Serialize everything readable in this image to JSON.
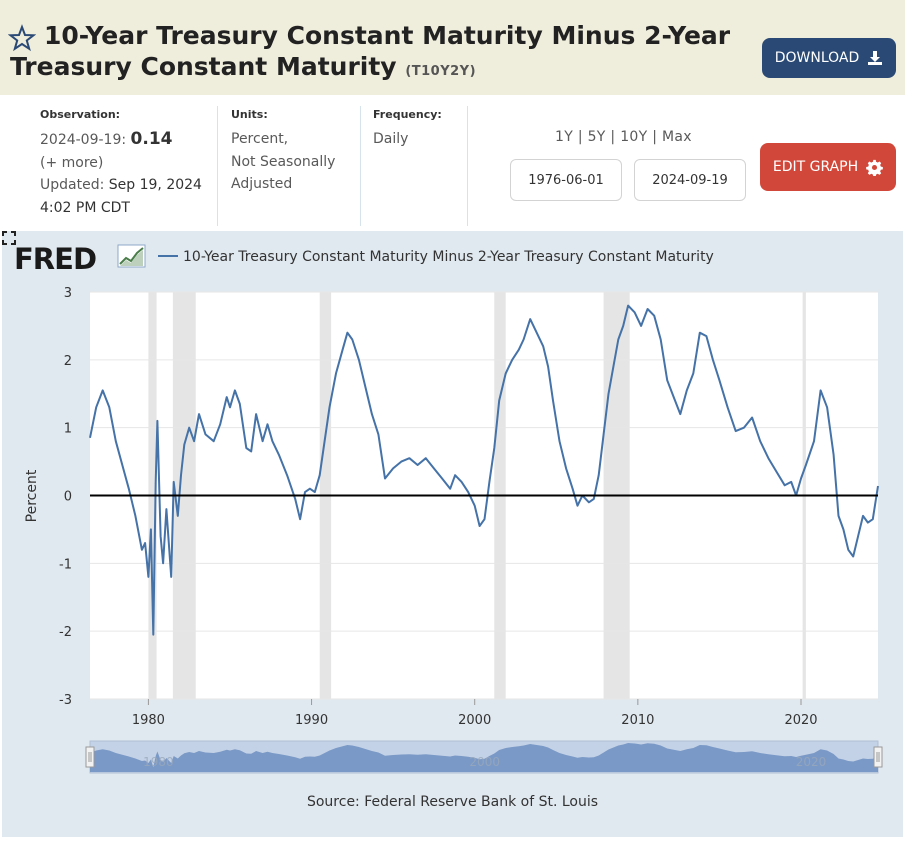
{
  "header": {
    "title": "10-Year Treasury Constant Maturity Minus 2-Year Treasury Constant Maturity",
    "series_id": "(T10Y2Y)",
    "download_label": "DOWNLOAD"
  },
  "meta": {
    "observation_label": "Observation:",
    "observation_date": "2024-09-19:",
    "observation_value": "0.14",
    "more": "(+ more)",
    "updated_label": "Updated:",
    "updated_value": "Sep 19, 2024",
    "updated_time": "4:02 PM CDT",
    "units_label": "Units:",
    "units_lines": [
      "Percent,",
      "Not Seasonally",
      "Adjusted"
    ],
    "frequency_label": "Frequency:",
    "frequency_value": "Daily"
  },
  "controls": {
    "range_links": [
      "1Y",
      "5Y",
      "10Y",
      "Max"
    ],
    "start_date": "1976-06-01",
    "end_date": "2024-09-19",
    "edit_label": "EDIT GRAPH"
  },
  "colors": {
    "header_bg": "#efeddc",
    "download_bg": "#2a4a75",
    "edit_bg": "#d1483a",
    "line": "#4572a7",
    "recession": "#e5e5e5",
    "panel_bg": "#e1e9f0"
  },
  "chart": {
    "logo": "FRED",
    "legend_label": "10-Year Treasury Constant Maturity Minus 2-Year Treasury Constant Maturity",
    "source": "Source: Federal Reserve Bank of St. Louis"
  },
  "chart_data": {
    "type": "line",
    "title": "10-Year Treasury Constant Maturity Minus 2-Year Treasury Constant Maturity",
    "xlabel": "",
    "ylabel": "Percent",
    "xlim": [
      1976.42,
      2024.72
    ],
    "ylim": [
      -3,
      3
    ],
    "xticks": [
      1980,
      1990,
      2000,
      2010,
      2020
    ],
    "yticks": [
      3,
      2,
      1,
      0,
      -1,
      -2,
      -3
    ],
    "grid": true,
    "zero_line": true,
    "recessions": [
      [
        1980.0,
        1980.5
      ],
      [
        1981.5,
        1982.9
      ],
      [
        1990.5,
        1991.2
      ],
      [
        2001.2,
        2001.9
      ],
      [
        2007.9,
        2009.5
      ],
      [
        2020.1,
        2020.3
      ]
    ],
    "navigator_labels": [
      "1980",
      "2000",
      "2020"
    ],
    "series": [
      {
        "name": "T10Y2Y",
        "x": [
          1976.42,
          1976.8,
          1977.2,
          1977.6,
          1978.0,
          1978.4,
          1978.8,
          1979.2,
          1979.6,
          1979.8,
          1980.0,
          1980.15,
          1980.3,
          1980.45,
          1980.55,
          1980.75,
          1980.9,
          1981.1,
          1981.4,
          1981.55,
          1981.8,
          1982.0,
          1982.2,
          1982.5,
          1982.8,
          1983.1,
          1983.5,
          1984.0,
          1984.4,
          1984.8,
          1985.0,
          1985.3,
          1985.6,
          1986.0,
          1986.3,
          1986.6,
          1987.0,
          1987.3,
          1987.6,
          1988.0,
          1988.5,
          1989.0,
          1989.3,
          1989.6,
          1989.9,
          1990.2,
          1990.5,
          1990.8,
          1991.1,
          1991.5,
          1991.9,
          1992.2,
          1992.5,
          1992.9,
          1993.3,
          1993.7,
          1994.1,
          1994.5,
          1995.0,
          1995.5,
          1996.0,
          1996.5,
          1997.0,
          1997.5,
          1998.0,
          1998.5,
          1998.8,
          1999.2,
          1999.6,
          2000.0,
          2000.3,
          2000.6,
          2000.9,
          2001.2,
          2001.5,
          2001.9,
          2002.3,
          2002.7,
          2003.0,
          2003.4,
          2003.8,
          2004.2,
          2004.5,
          2004.8,
          2005.2,
          2005.6,
          2006.0,
          2006.3,
          2006.6,
          2007.0,
          2007.3,
          2007.6,
          2007.9,
          2008.2,
          2008.5,
          2008.8,
          2009.1,
          2009.4,
          2009.8,
          2010.2,
          2010.6,
          2011.0,
          2011.4,
          2011.8,
          2012.2,
          2012.6,
          2013.0,
          2013.4,
          2013.8,
          2014.2,
          2014.6,
          2015.0,
          2015.5,
          2016.0,
          2016.5,
          2017.0,
          2017.5,
          2018.0,
          2018.5,
          2019.0,
          2019.4,
          2019.7,
          2020.0,
          2020.3,
          2020.8,
          2021.2,
          2021.6,
          2022.0,
          2022.3,
          2022.6,
          2022.9,
          2023.2,
          2023.5,
          2023.8,
          2024.1,
          2024.4,
          2024.72
        ],
        "values": [
          0.85,
          1.3,
          1.55,
          1.3,
          0.8,
          0.45,
          0.1,
          -0.3,
          -0.8,
          -0.7,
          -1.2,
          -0.5,
          -2.05,
          0.2,
          1.1,
          -0.6,
          -1.0,
          -0.2,
          -1.2,
          0.2,
          -0.3,
          0.3,
          0.75,
          1.0,
          0.8,
          1.2,
          0.9,
          0.8,
          1.05,
          1.45,
          1.3,
          1.55,
          1.35,
          0.7,
          0.65,
          1.2,
          0.8,
          1.05,
          0.8,
          0.6,
          0.3,
          -0.05,
          -0.35,
          0.05,
          0.1,
          0.05,
          0.3,
          0.8,
          1.3,
          1.8,
          2.15,
          2.4,
          2.3,
          2.0,
          1.6,
          1.2,
          0.9,
          0.25,
          0.4,
          0.5,
          0.55,
          0.45,
          0.55,
          0.4,
          0.25,
          0.1,
          0.3,
          0.2,
          0.05,
          -0.15,
          -0.45,
          -0.35,
          0.2,
          0.7,
          1.4,
          1.8,
          2.0,
          2.15,
          2.3,
          2.6,
          2.4,
          2.2,
          1.9,
          1.4,
          0.8,
          0.4,
          0.1,
          -0.15,
          0.0,
          -0.1,
          -0.05,
          0.3,
          0.9,
          1.5,
          1.9,
          2.3,
          2.5,
          2.8,
          2.7,
          2.5,
          2.75,
          2.65,
          2.3,
          1.7,
          1.45,
          1.2,
          1.55,
          1.8,
          2.4,
          2.35,
          2.0,
          1.7,
          1.3,
          0.95,
          1.0,
          1.15,
          0.8,
          0.55,
          0.35,
          0.15,
          0.2,
          0.0,
          0.25,
          0.45,
          0.8,
          1.55,
          1.3,
          0.6,
          -0.3,
          -0.5,
          -0.8,
          -0.9,
          -0.6,
          -0.3,
          -0.4,
          -0.35,
          0.14
        ]
      }
    ]
  }
}
